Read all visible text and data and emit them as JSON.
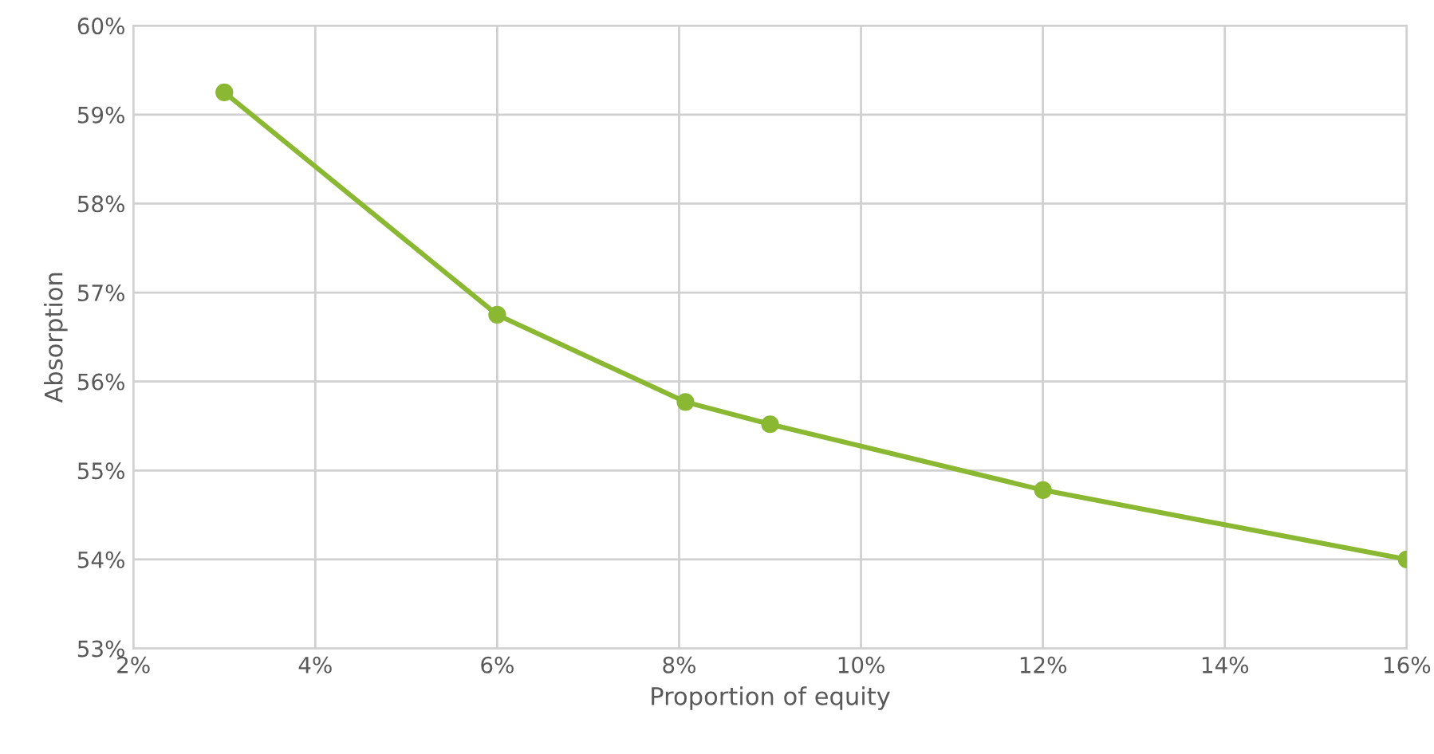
{
  "chart_data": {
    "type": "line",
    "xlabel": "Proportion of equity",
    "ylabel": "Absorption",
    "series": [
      {
        "color": "#8ab832",
        "x": [
          3,
          6,
          8.07,
          9,
          12,
          16
        ],
        "values": [
          59.25,
          56.75,
          55.77,
          55.52,
          54.78,
          54.0
        ]
      }
    ],
    "xlim": [
      2,
      16
    ],
    "xticks": [
      {
        "value": 2,
        "label": "2%"
      },
      {
        "value": 4,
        "label": "4%"
      },
      {
        "value": 6,
        "label": "6%"
      },
      {
        "value": 8,
        "label": "8%"
      },
      {
        "value": 10,
        "label": "10%"
      },
      {
        "value": 12,
        "label": "12%"
      },
      {
        "value": 14,
        "label": "14%"
      },
      {
        "value": 16,
        "label": "16%"
      }
    ],
    "ylim": [
      53,
      60
    ],
    "yticks": [
      {
        "value": 53,
        "label": "53%"
      },
      {
        "value": 54,
        "label": "54%"
      },
      {
        "value": 55,
        "label": "55%"
      },
      {
        "value": 56,
        "label": "56%"
      },
      {
        "value": 57,
        "label": "57%"
      },
      {
        "value": 58,
        "label": "58%"
      },
      {
        "value": 59,
        "label": "59%"
      },
      {
        "value": 60,
        "label": "60%"
      }
    ],
    "grid": true,
    "marker": "circle",
    "line_style": "solid"
  }
}
